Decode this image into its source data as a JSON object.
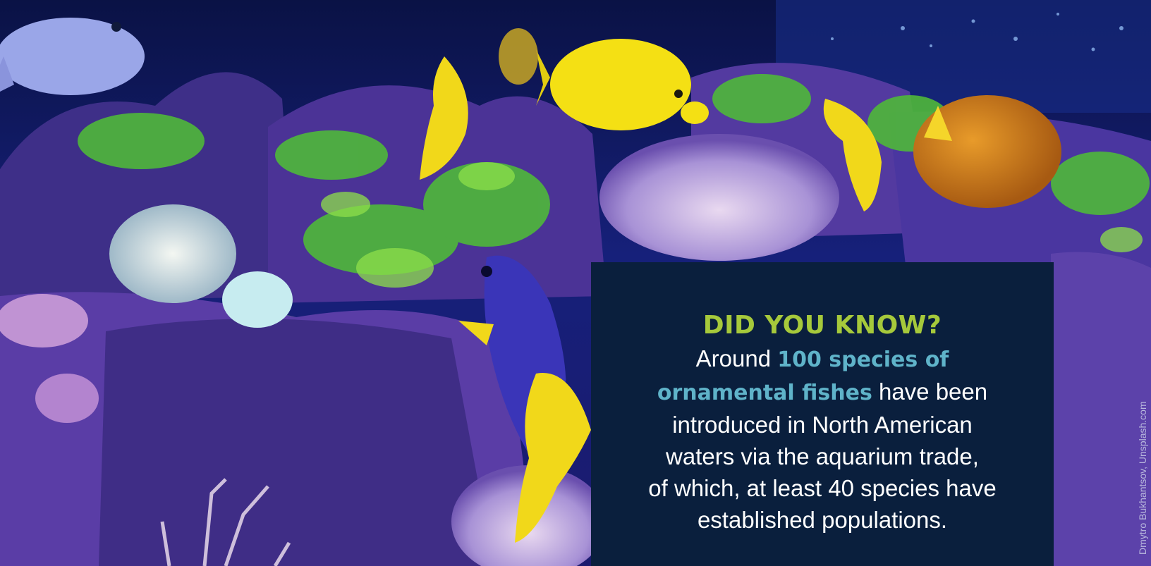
{
  "panel": {
    "heading": "DID YOU KNOW?",
    "body_lines": [
      {
        "pre": "Around ",
        "highlight": "100 species of",
        "post": ""
      },
      {
        "pre": "",
        "highlight": "ornamental fishes",
        "post": " have been"
      },
      {
        "pre": "introduced in North American",
        "highlight": "",
        "post": ""
      },
      {
        "pre": "waters via the aquarium trade,",
        "highlight": "",
        "post": ""
      },
      {
        "pre": "of which, at least 40 species have",
        "highlight": "",
        "post": ""
      },
      {
        "pre": "established populations.",
        "highlight": "",
        "post": ""
      }
    ]
  },
  "credit": "Dmytro Bukhantsov, Unsplash.com",
  "colors": {
    "heading": "#a6c93b",
    "highlight": "#5fb3c9",
    "panel_bg": "#0a1f3d",
    "water": "#0b1550"
  }
}
